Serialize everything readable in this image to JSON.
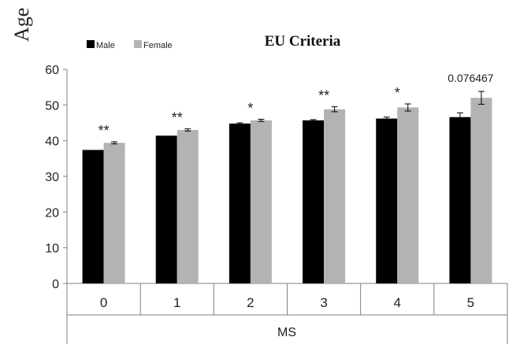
{
  "chart_data": {
    "type": "bar",
    "title": "EU Criteria",
    "xlabel": "MS",
    "ylabel": "Age",
    "ylim": [
      0,
      60
    ],
    "yticks": [
      0,
      10,
      20,
      30,
      40,
      50,
      60
    ],
    "categories": [
      "0",
      "1",
      "2",
      "3",
      "4",
      "5"
    ],
    "series": [
      {
        "name": "Male",
        "color": "#000000",
        "values": [
          37.4,
          41.4,
          44.8,
          45.7,
          46.2,
          46.6
        ],
        "errors": [
          0.0,
          0.0,
          0.2,
          0.2,
          0.4,
          1.2
        ]
      },
      {
        "name": "Female",
        "color": "#b3b3b3",
        "values": [
          39.4,
          43.0,
          45.7,
          48.8,
          49.3,
          52.0
        ],
        "errors": [
          0.3,
          0.3,
          0.3,
          0.7,
          1.0,
          1.8
        ]
      }
    ],
    "annotations": [
      "**",
      "**",
      "*",
      "**",
      "*",
      "0.076467"
    ],
    "legend_position": "top-left",
    "grid": false
  }
}
